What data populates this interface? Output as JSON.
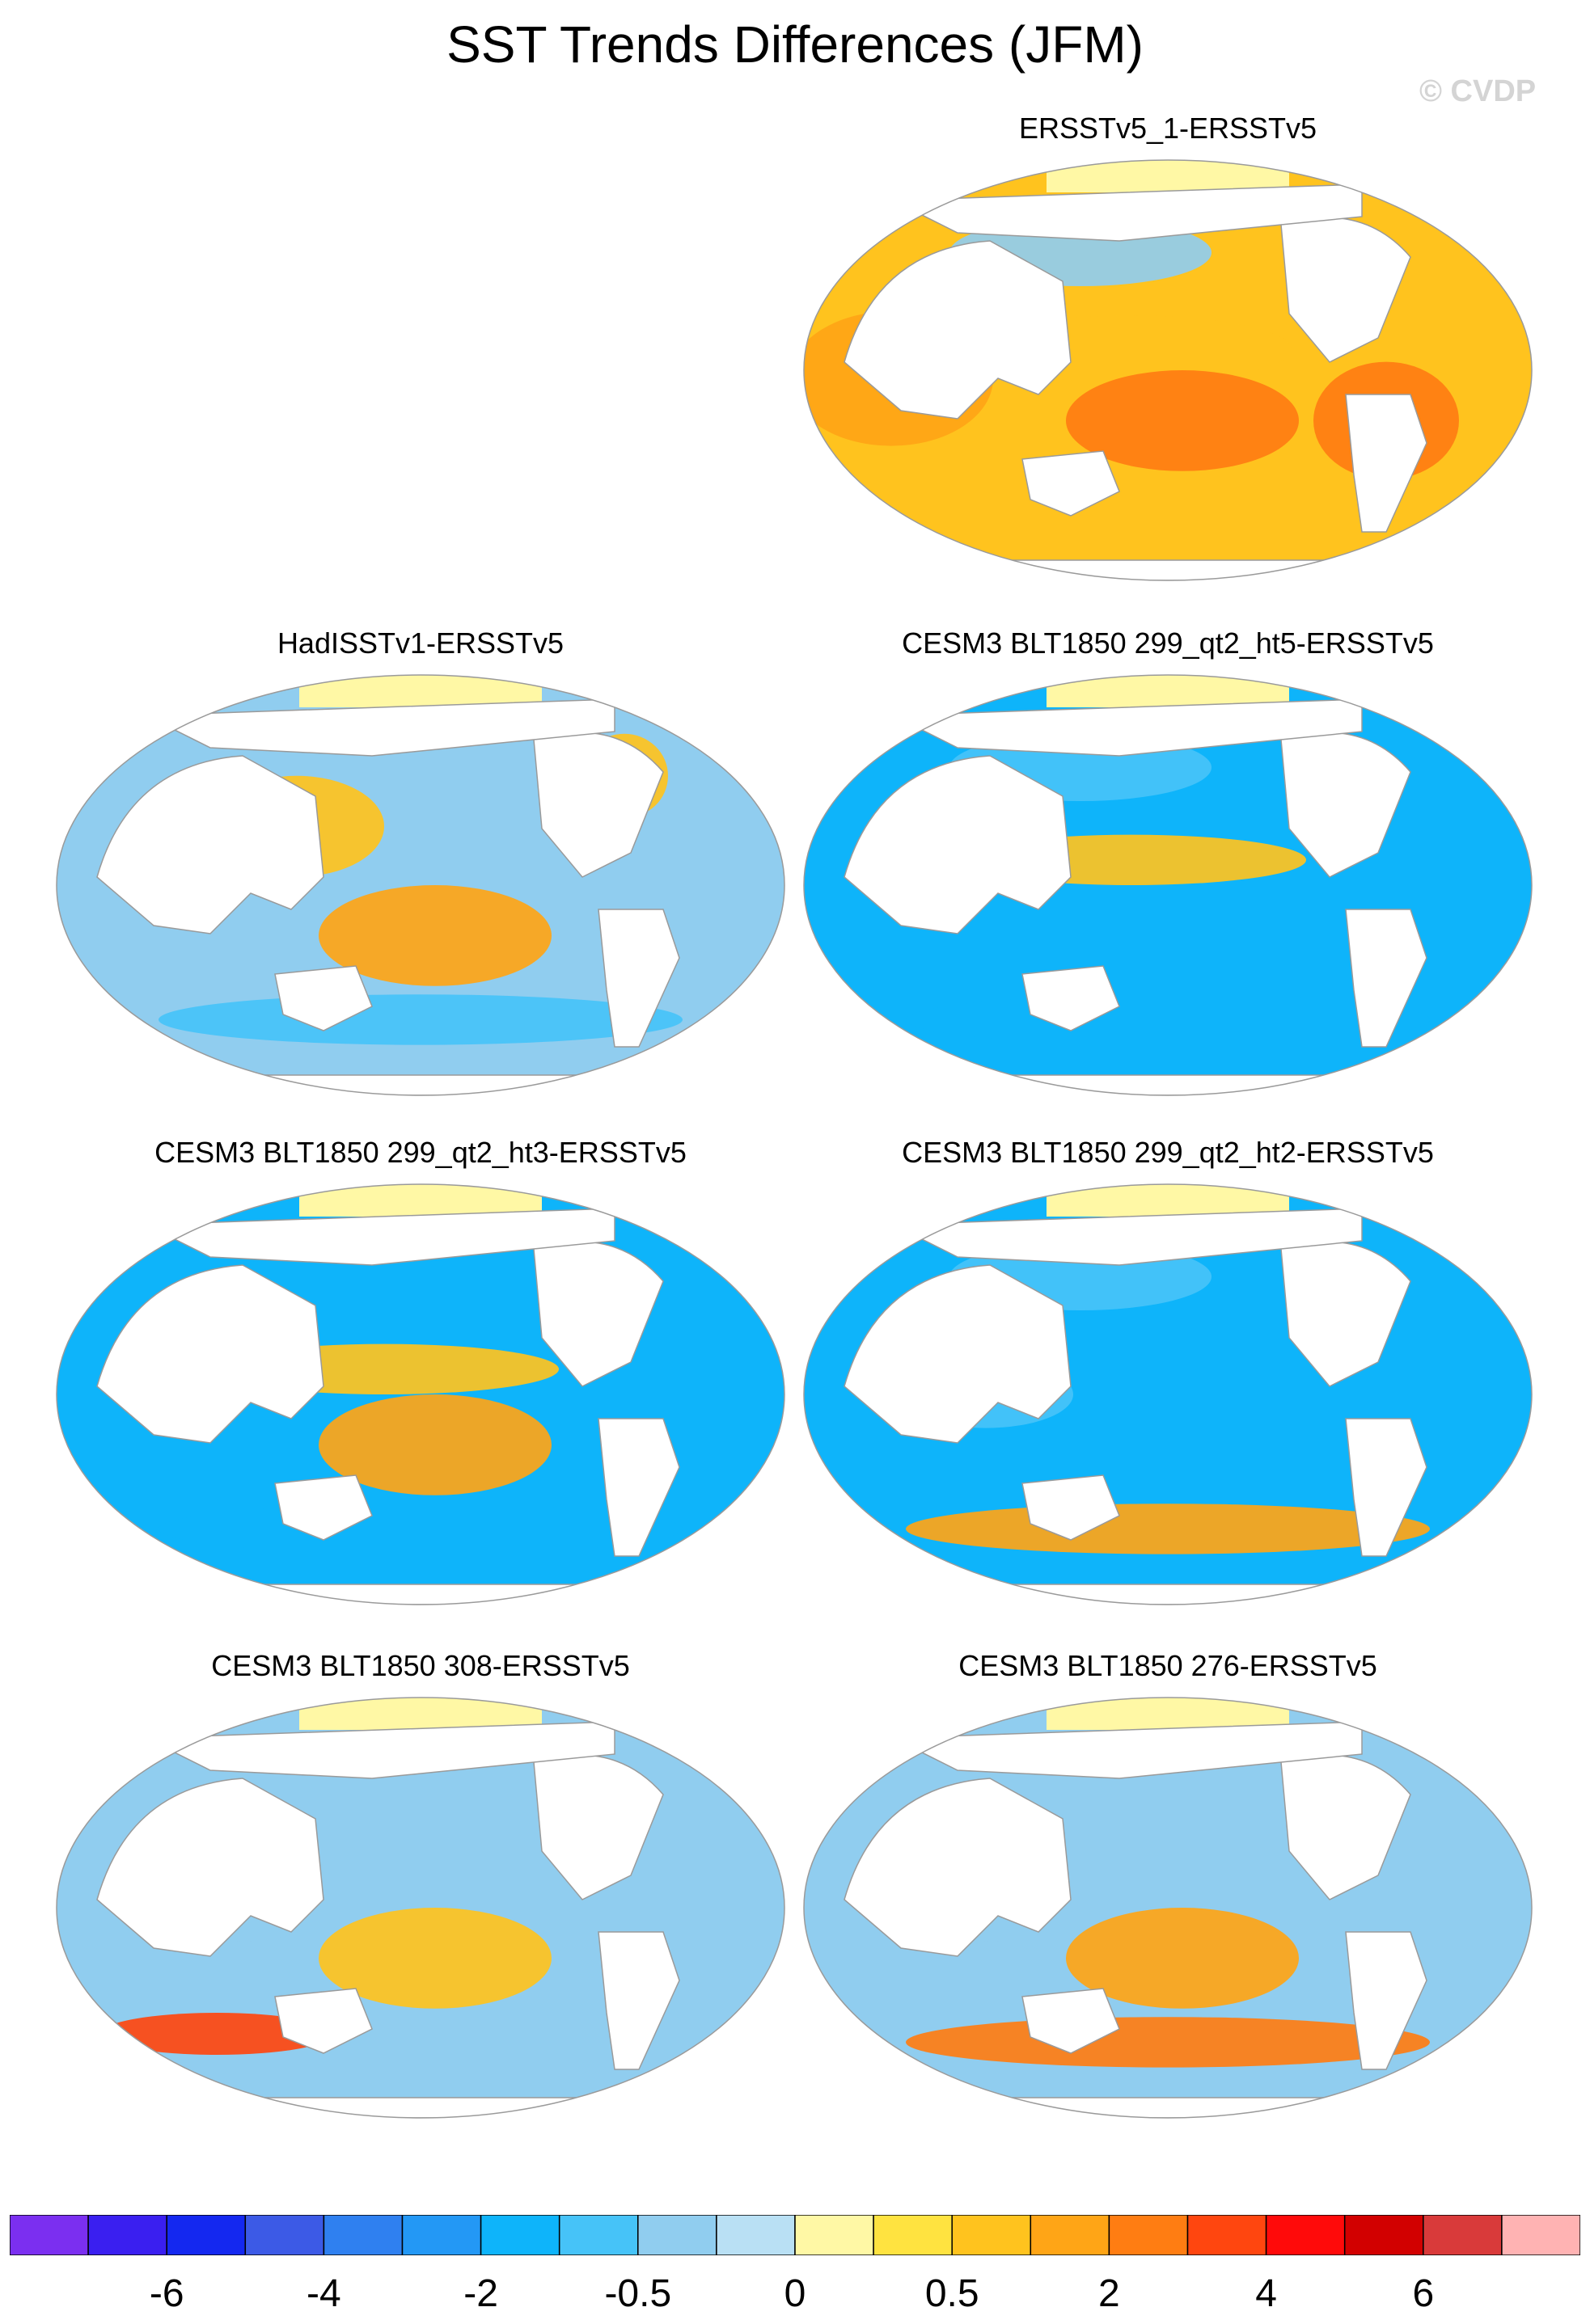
{
  "title": "SST Trends Differences (JFM)",
  "copyright": "© CVDP",
  "chart_data": [
    {
      "type": "heatmap",
      "projection": "Robinson",
      "title": "ERSSTv5_1-ERSSTv5",
      "dominant": "positive",
      "patches": [
        {
          "region": "tropical Pacific",
          "value": 0.7
        },
        {
          "region": "South Pacific",
          "value": 2.0
        },
        {
          "region": "Indian Ocean",
          "value": 1.0
        },
        {
          "region": "South Atlantic",
          "value": 2.0
        },
        {
          "region": "North Pacific",
          "value": -0.5
        }
      ]
    },
    {
      "type": "heatmap",
      "projection": "Robinson",
      "title": "HadISSTv1-ERSSTv5",
      "dominant": "mixed",
      "patches": [
        {
          "region": "South Pacific",
          "value": 1.0
        },
        {
          "region": "West Pacific",
          "value": 0.7
        },
        {
          "region": "North Atlantic",
          "value": 0.7
        },
        {
          "region": "Southern Ocean",
          "value": -1.0
        }
      ]
    },
    {
      "type": "heatmap",
      "projection": "Robinson",
      "title": "CESM3 BLT1850 299_qt2_ht5-ERSSTv5",
      "dominant": "negative",
      "patches": [
        {
          "region": "equatorial Pacific",
          "value": 0.7
        },
        {
          "region": "North Pacific",
          "value": -1.0
        },
        {
          "region": "Southern Ocean",
          "value": -2.0
        }
      ]
    },
    {
      "type": "heatmap",
      "projection": "Robinson",
      "title": "CESM3 BLT1850 299_qt2_ht3-ERSSTv5",
      "dominant": "negative",
      "patches": [
        {
          "region": "equatorial Pacific",
          "value": 0.5
        },
        {
          "region": "South Pacific",
          "value": 1.0
        },
        {
          "region": "Southern Ocean",
          "value": -2.0
        }
      ]
    },
    {
      "type": "heatmap",
      "projection": "Robinson",
      "title": "CESM3 BLT1850 299_qt2_ht2-ERSSTv5",
      "dominant": "negative",
      "patches": [
        {
          "region": "Southern Ocean",
          "value": 1.0
        },
        {
          "region": "tropics",
          "value": -1.0
        },
        {
          "region": "North Pacific",
          "value": -1.0
        }
      ]
    },
    {
      "type": "heatmap",
      "projection": "Robinson",
      "title": "CESM3 BLT1850 308-ERSSTv5",
      "dominant": "mixed",
      "patches": [
        {
          "region": "Southern Indian Ocean",
          "value": 3.0
        },
        {
          "region": "South Pacific",
          "value": 0.7
        },
        {
          "region": "tropics",
          "value": -0.5
        }
      ]
    },
    {
      "type": "heatmap",
      "projection": "Robinson",
      "title": "CESM3 BLT1850 276-ERSSTv5",
      "dominant": "mixed",
      "patches": [
        {
          "region": "Southern Ocean",
          "value": 2.0
        },
        {
          "region": "South Pacific",
          "value": 1.0
        },
        {
          "region": "tropics",
          "value": -0.5
        }
      ]
    }
  ],
  "colorbar": {
    "colors": [
      "#7b2ff0",
      "#3a1ff0",
      "#1428f0",
      "#3c5ae6",
      "#2f80f0",
      "#2398f5",
      "#0eb4fa",
      "#46c3f8",
      "#90cdef",
      "#b9e0f4",
      "#fff8a5",
      "#ffe340",
      "#ffc31e",
      "#ffa516",
      "#ff7d12",
      "#ff460f",
      "#ff0a0a",
      "#d20000",
      "#d93a3a",
      "#ffb3b3"
    ],
    "tick_labels": [
      "-6",
      "-4",
      "-2",
      "-0.5",
      "0",
      "0.5",
      "2",
      "4",
      "6"
    ]
  }
}
